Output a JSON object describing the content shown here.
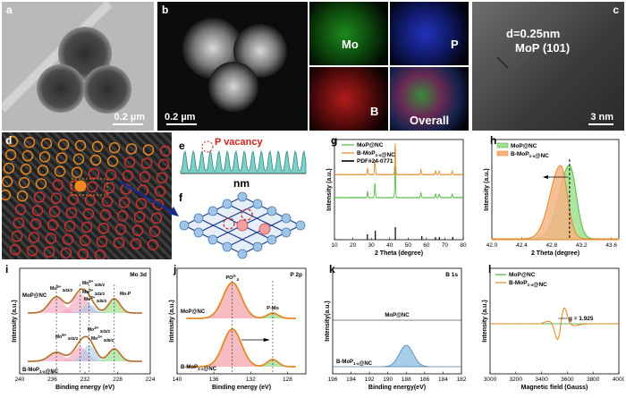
{
  "panels": {
    "a": {
      "label": "a",
      "scale": "0.2 µm"
    },
    "b": {
      "label": "b",
      "scale": "0.2 µm"
    },
    "maps": [
      "Mo",
      "P",
      "B",
      "Overall"
    ],
    "c": {
      "label": "c",
      "spacing": "d=0.25nm",
      "plane": "MoP (101)",
      "scale": "3 nm"
    },
    "d": {
      "label": "d"
    },
    "e": {
      "label": "e",
      "vacancy": "P vacancy",
      "unit": "nm"
    },
    "f": {
      "label": "f"
    }
  },
  "chart_data": [
    {
      "id": "g",
      "type": "line",
      "xlabel": "2 Theta (degree)",
      "ylabel": "Intensity (a.u.)",
      "xlim": [
        10,
        80
      ],
      "xticks": [
        10,
        20,
        30,
        40,
        50,
        60,
        70,
        80
      ],
      "legend": [
        "MoP@NC",
        "B-MoP1-x@NC",
        "PDF#24-0771"
      ],
      "series": [
        {
          "name": "MoP@NC",
          "color": "#55bb44",
          "peaks": [
            28,
            32,
            43,
            57,
            65,
            67,
            74
          ]
        },
        {
          "name": "B-MoP1-x@NC",
          "color": "#e58a2a",
          "peaks": [
            28,
            32,
            43,
            57,
            65,
            67,
            74
          ]
        }
      ],
      "reference": {
        "name": "PDF#24-0771",
        "positions": [
          27.9,
          32.2,
          43.1,
          57.5,
          64.9,
          67.0,
          74.3
        ]
      }
    },
    {
      "id": "h",
      "type": "area",
      "xlabel": "2 Theta (degree)",
      "ylabel": "Intensity (a.u.)",
      "xlim": [
        42.0,
        43.7
      ],
      "xticks": [
        "42.0",
        "42.4",
        "42.8",
        "43.2",
        "43.6"
      ],
      "legend": [
        "MoP@NC",
        "B-MoP1-x@NC"
      ],
      "series": [
        {
          "name": "MoP@NC",
          "center": 43.04,
          "color": "#55bb44"
        },
        {
          "name": "B-MoP1-x@NC",
          "center": 42.92,
          "color": "#e58a2a"
        }
      ]
    },
    {
      "id": "i",
      "type": "line",
      "title": "Mo 3d",
      "xlabel": "Binding energy (eV)",
      "ylabel": "Intensity (a.u.)",
      "xlim": [
        240,
        224
      ],
      "xticks": [
        240,
        236,
        232,
        228,
        224
      ],
      "series_labels": [
        "MoP@NC",
        "B-MoP1-x@NC"
      ],
      "annotations": [
        "Mo6+ 3d3/2",
        "Mo6+ 3d5/2",
        "Mo3+ 3d3/2",
        "Mo3+ 3d5/2",
        "Mo-P",
        "Mo6+ 3d3/2",
        "Mo3+ 3d3/2",
        "Mo3+ 3d5/2"
      ]
    },
    {
      "id": "j",
      "type": "line",
      "title": "P 2p",
      "xlabel": "Binding energy (eV)",
      "ylabel": "Intensity (a.u.)",
      "xlim": [
        140,
        126
      ],
      "xticks": [
        140,
        136,
        132,
        128
      ],
      "series_labels": [
        "MoP@NC",
        "B-MoP1-x@NC"
      ],
      "annotations": [
        "PO4 3-",
        "P-Mo"
      ]
    },
    {
      "id": "k",
      "type": "line",
      "title": "B 1s",
      "xlabel": "Binding energy(eV)",
      "ylabel": "Intensity(a.u.)",
      "xlim": [
        196,
        182
      ],
      "xticks": [
        196,
        194,
        192,
        190,
        188,
        186,
        184,
        182
      ],
      "series_labels": [
        "MoP@NC",
        "B-MoP1-x@NC"
      ],
      "peak": 188
    },
    {
      "id": "l",
      "type": "line",
      "xlabel": "Magnetic field (Gauss)",
      "ylabel": "Intensity (a.u.)",
      "xlim": [
        3000,
        4000
      ],
      "xticks": [
        3000,
        3200,
        3400,
        3600,
        3800,
        4000
      ],
      "legend": [
        "MoP@NC",
        "B-MoP1-x@NC"
      ],
      "annotation": "g = 1.925",
      "center": 3550
    }
  ]
}
